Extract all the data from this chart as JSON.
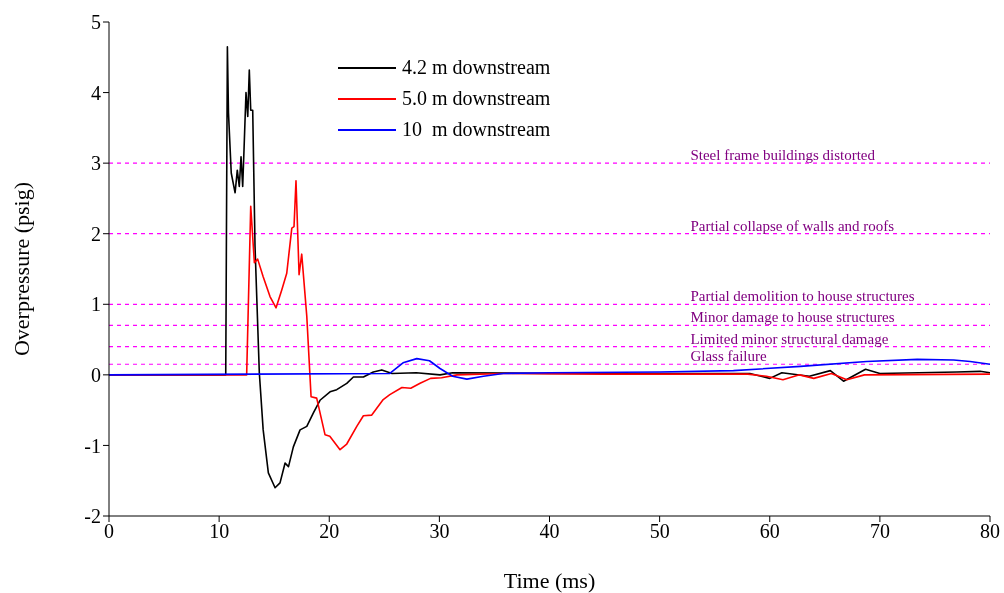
{
  "chart_data": {
    "type": "line",
    "xlabel": "Time (ms)",
    "ylabel": "Overpressure (psig)",
    "xlim": [
      0,
      80
    ],
    "ylim": [
      -2,
      5
    ],
    "xticks": [
      0,
      10,
      20,
      30,
      40,
      50,
      60,
      70,
      80
    ],
    "yticks": [
      -2,
      -1,
      0,
      1,
      2,
      3,
      4,
      5
    ],
    "grid": false,
    "legend": "top",
    "series": [
      {
        "name": "4.2 m downstream",
        "color": "#000000",
        "x": [
          0,
          10.6,
          10.75,
          10.85,
          11.1,
          11.45,
          11.65,
          11.83,
          11.99,
          12.14,
          12.26,
          12.44,
          12.6,
          12.74,
          12.87,
          13.05,
          13.26,
          13.65,
          14.0,
          14.47,
          15.08,
          15.53,
          15.99,
          16.3,
          16.74,
          17.35,
          17.96,
          18.56,
          19.16,
          20.07,
          20.68,
          21.59,
          22.19,
          23.1,
          24.0,
          24.77,
          25.7,
          27.9,
          30.06,
          31.2,
          40,
          50,
          58.2,
          60.0,
          61.1,
          63.6,
          65.5,
          66.7,
          68.7,
          70.0,
          77,
          79.1,
          80
        ],
        "values": [
          0,
          0,
          4.65,
          3.71,
          2.86,
          2.58,
          2.9,
          2.67,
          3.09,
          2.67,
          3.19,
          4.0,
          3.66,
          4.32,
          3.75,
          3.75,
          1.82,
          0.03,
          -0.78,
          -1.39,
          -1.6,
          -1.53,
          -1.25,
          -1.3,
          -1.02,
          -0.78,
          -0.73,
          -0.54,
          -0.36,
          -0.24,
          -0.21,
          -0.12,
          -0.03,
          -0.03,
          0.04,
          0.07,
          0.02,
          0.03,
          0,
          0.03,
          0.02,
          0.02,
          0.02,
          -0.05,
          0.03,
          -0.02,
          0.06,
          -0.09,
          0.08,
          0.02,
          0.04,
          0.05,
          0.03
        ]
      },
      {
        "name": "5.0 m downstream",
        "color": "#ff0000",
        "x": [
          0,
          12.5,
          12.87,
          13.2,
          13.5,
          14.0,
          14.62,
          15.17,
          15.68,
          16.14,
          16.6,
          16.8,
          16.98,
          17.26,
          17.5,
          17.96,
          18.35,
          18.86,
          19.62,
          20.05,
          20.98,
          21.59,
          22.5,
          23.1,
          23.86,
          24.9,
          25.5,
          26.6,
          27.4,
          28.25,
          29.2,
          30.2,
          31.6,
          35.8,
          45,
          58,
          59.7,
          61.2,
          62.7,
          64.0,
          65.6,
          67.0,
          68.6,
          80
        ],
        "values": [
          0,
          0,
          2.39,
          1.59,
          1.64,
          1.39,
          1.11,
          0.95,
          1.2,
          1.44,
          2.08,
          2.1,
          2.75,
          1.42,
          1.71,
          0.83,
          -0.31,
          -0.33,
          -0.85,
          -0.87,
          -1.06,
          -0.98,
          -0.73,
          -0.58,
          -0.57,
          -0.35,
          -0.28,
          -0.18,
          -0.19,
          -0.12,
          -0.05,
          -0.04,
          0,
          0.02,
          0.01,
          0.01,
          -0.02,
          -0.07,
          0,
          -0.05,
          0.02,
          -0.07,
          0,
          0.01
        ]
      },
      {
        "name": "10  m downstream",
        "color": "#0000ff",
        "x": [
          0,
          25.5,
          26.7,
          27.95,
          29.1,
          30.06,
          31.2,
          32.5,
          34.0,
          35.8,
          40,
          50,
          56.7,
          62.8,
          68.8,
          73.4,
          76.7,
          78.2,
          80
        ],
        "values": [
          0,
          0.02,
          0.17,
          0.23,
          0.2,
          0.09,
          -0.02,
          -0.06,
          -0.02,
          0.02,
          0.03,
          0.04,
          0.06,
          0.12,
          0.19,
          0.22,
          0.21,
          0.19,
          0.15
        ]
      }
    ],
    "ref_lines": [
      {
        "axis": "y",
        "value": 3,
        "label": "Steel frame buildings distorted",
        "color": "#ff00ff",
        "line_style": "dashed"
      },
      {
        "axis": "y",
        "value": 2,
        "label": "Partial collapse of walls and roofs",
        "color": "#ff00ff",
        "line_style": "dashed"
      },
      {
        "axis": "y",
        "value": 1,
        "label": "Partial demolition to house structures",
        "color": "#ff00ff",
        "line_style": "dashed"
      },
      {
        "axis": "y",
        "value": 0.7,
        "label": "Minor damage to house structures",
        "color": "#ff00ff",
        "line_style": "dashed"
      },
      {
        "axis": "y",
        "value": 0.4,
        "label": "Limited minor structural damage",
        "color": "#ff00ff",
        "line_style": "dashed"
      },
      {
        "axis": "y",
        "value": 0.15,
        "label": "Glass failure",
        "color": "#ff00ff",
        "line_style": "dashed"
      }
    ]
  }
}
